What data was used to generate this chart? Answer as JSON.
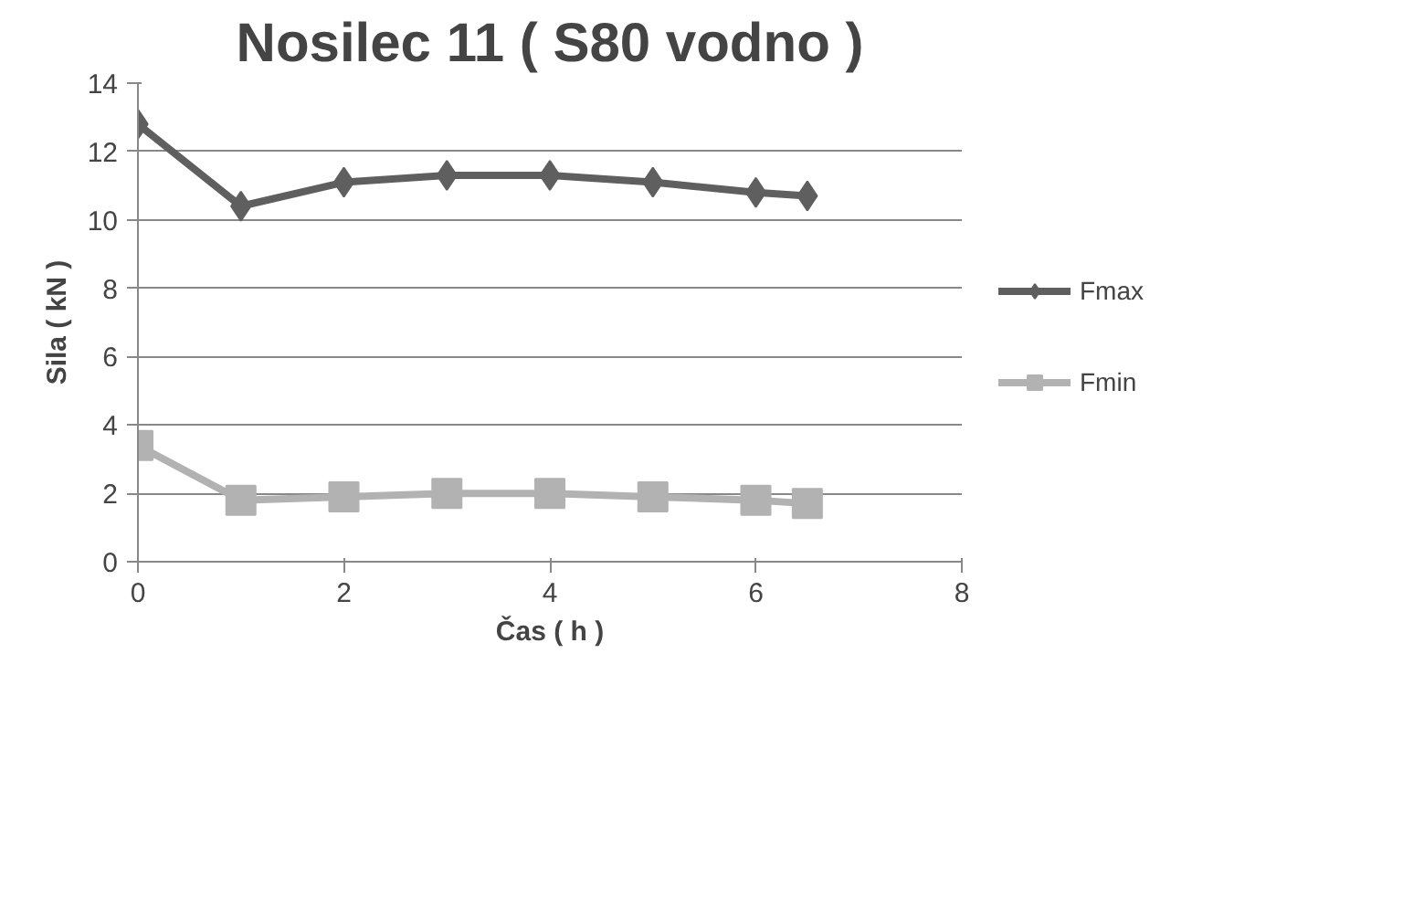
{
  "chart_data": {
    "type": "line",
    "title": "Nosilec 11 ( S80 vodno )",
    "xlabel": "Čas ( h )",
    "ylabel": "Sila ( kN )",
    "x": [
      0,
      1,
      2,
      3,
      4,
      5,
      6,
      6.5
    ],
    "series": [
      {
        "name": "Fmax",
        "color": "#5f5f5f",
        "marker": "diamond",
        "values": [
          12.8,
          10.4,
          11.1,
          11.3,
          11.3,
          11.1,
          10.8,
          10.7
        ]
      },
      {
        "name": "Fmin",
        "color": "#b2b2b2",
        "marker": "square",
        "values": [
          3.4,
          1.8,
          1.9,
          2.0,
          2.0,
          1.9,
          1.8,
          1.7
        ]
      }
    ],
    "xlim": [
      0,
      8
    ],
    "xticks": [
      0,
      2,
      4,
      6,
      8
    ],
    "ylim": [
      0,
      14
    ],
    "yticks": [
      0,
      2,
      4,
      6,
      8,
      10,
      12,
      14
    ],
    "grid": "y",
    "legend": "right",
    "line_style": "solid"
  }
}
